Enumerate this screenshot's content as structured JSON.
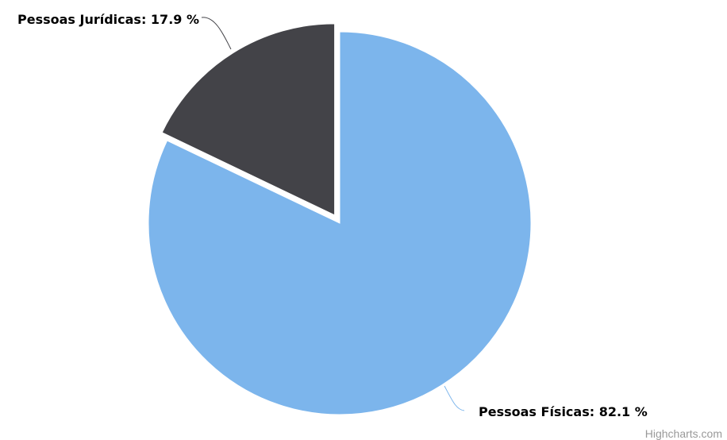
{
  "credits": "Highcharts.com",
  "chart_data": {
    "type": "pie",
    "title": "",
    "series": [
      {
        "data": [
          {
            "name": "Pessoas Físicas",
            "value": 82.1,
            "label": "Pessoas Físicas: 82.1 %",
            "color": "#7cb5ec"
          },
          {
            "name": "Pessoas Jurídicas",
            "value": 17.9,
            "label": "Pessoas Jurídicas: 17.9 %",
            "color": "#434348",
            "sliced": true
          }
        ]
      }
    ]
  }
}
